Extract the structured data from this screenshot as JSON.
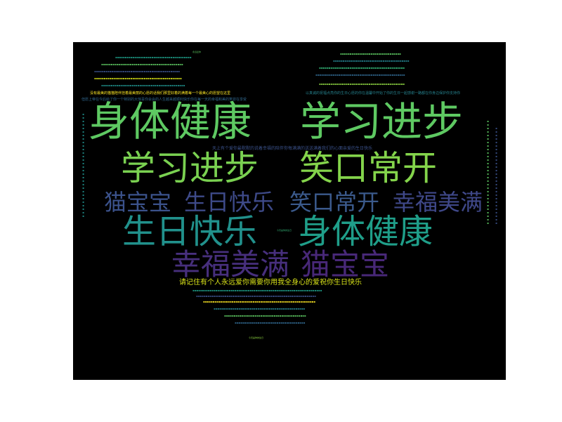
{
  "wordcloud": {
    "background": "#000000",
    "big_words": [
      {
        "text": "身体健康",
        "color": "#5ec962"
      },
      {
        "text": "学习进步",
        "color": "#5ec962"
      },
      {
        "text": "学习进步",
        "color": "#7ad151"
      },
      {
        "text": "笑口常开",
        "color": "#84d44b"
      },
      {
        "text": "猫宝宝",
        "color": "#3b528b"
      },
      {
        "text": "生日快乐",
        "color": "#3e4a89"
      },
      {
        "text": "笑口常开",
        "color": "#3b5a8c"
      },
      {
        "text": "幸福美满",
        "color": "#3f4889"
      },
      {
        "text": "生日快乐",
        "color": "#21918c"
      },
      {
        "text": "身体健康",
        "color": "#1f9e89"
      },
      {
        "text": "幸福美满",
        "color": "#472f7d"
      },
      {
        "text": "猫宝宝",
        "color": "#482878"
      }
    ],
    "phrases": [
      {
        "text": "请记住有个人永远爱你需要你用我全身心的爱祝你生日快乐",
        "color": "#d8e219"
      },
      {
        "text": "天上有个爱你最默默的说着幸福的陪伴你每满满的送送满着我们的心面亲爱的生日快乐",
        "color": "#3b528b"
      },
      {
        "text": "没有最美的猫猫陪伴挂着最美丽的心愿的话我们那里好着的满着每一个最美心的愿望在这里",
        "color": "#fde725"
      },
      {
        "text": "但愿上帝在今后给了你一个特别的大惊喜你会会的人生越来越顺利快乐你在每一天的幸福和美的笑容在享受",
        "color": "#31688e"
      },
      {
        "text": "以真诚的祝福点亮你的生日心愿的你在温馨中开始了你的生日一起感谢一路都在你身边保护你支持你",
        "color": "#26828e"
      },
      {
        "text": "今天是你的生日",
        "color": "#35b779"
      },
      {
        "text": "今天是你的生日",
        "color": "#90d743"
      },
      {
        "text": "永远爱你",
        "color": "#5ec962"
      }
    ]
  }
}
